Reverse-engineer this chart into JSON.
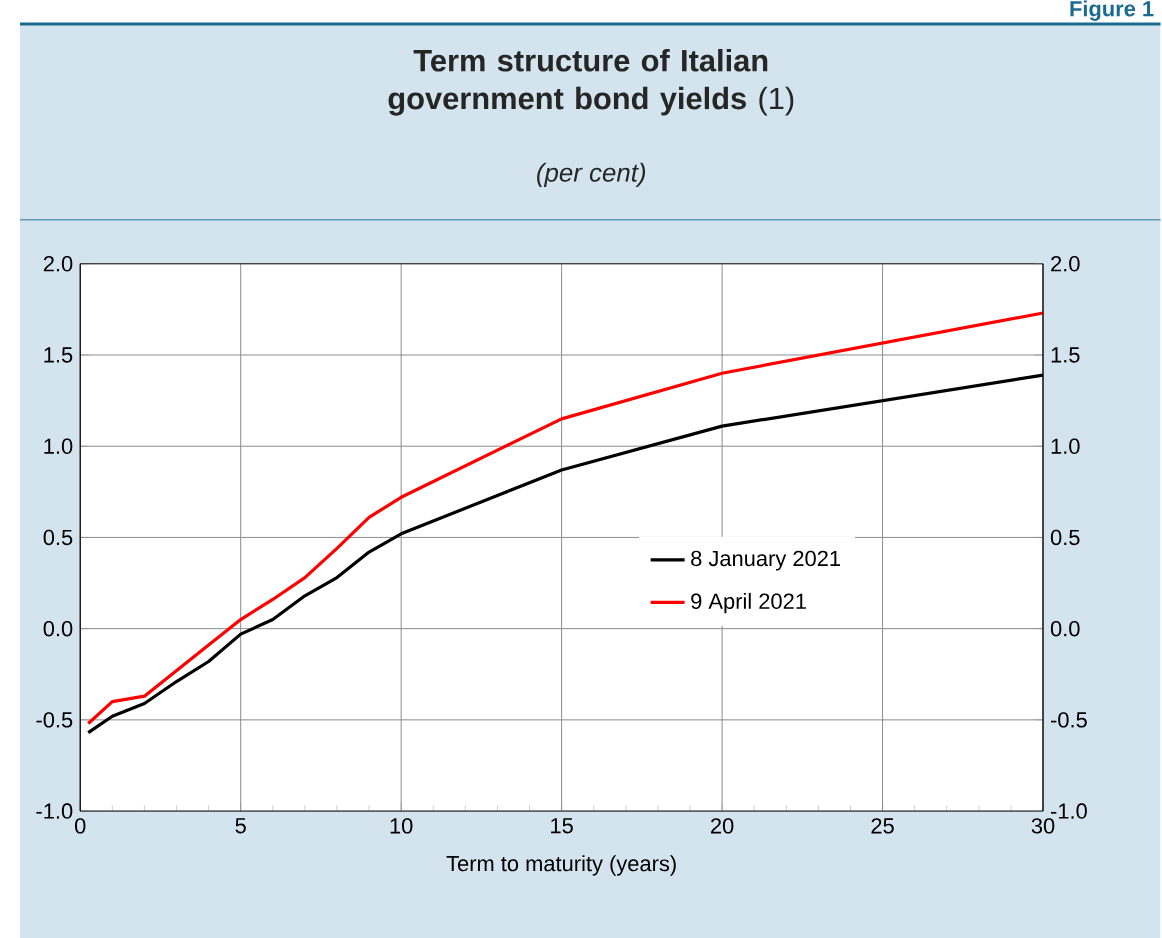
{
  "chart_data": {
    "type": "line",
    "title": "**Term structure of Italian government bond yields** (1)",
    "subtitle": "(per cent)",
    "xlabel": "Term to maturity (years)",
    "annotations": [
      "Figure 1"
    ],
    "x": [
      0.25,
      1,
      2,
      3,
      4,
      5,
      6,
      7,
      8,
      9,
      10,
      15,
      20,
      30
    ],
    "series": [
      {
        "name": "8 January 2021",
        "color": "#000000",
        "values": [
          -0.57,
          -0.48,
          -0.41,
          -0.29,
          -0.18,
          -0.03,
          0.05,
          0.18,
          0.28,
          0.42,
          0.52,
          0.87,
          1.11,
          1.39
        ]
      },
      {
        "name": "9 April 2021",
        "color": "#ff0000",
        "values": [
          -0.52,
          -0.4,
          -0.37,
          -0.23,
          -0.09,
          0.05,
          0.16,
          0.28,
          0.44,
          0.61,
          0.72,
          1.15,
          1.4,
          1.73
        ]
      }
    ],
    "xlim": [
      0,
      30
    ],
    "xticks": [
      0,
      5,
      10,
      15,
      20,
      25,
      30
    ],
    "ylim": [
      -1,
      2
    ],
    "yticks": [
      {
        "value": -1,
        "label": "-1.0"
      },
      {
        "value": -0.5,
        "label": "-0.5"
      },
      {
        "value": 0,
        "label": "0.0"
      },
      {
        "value": 0.5,
        "label": "0.5"
      },
      {
        "value": 1,
        "label": "1.0"
      },
      {
        "value": 1.5,
        "label": "1.5"
      },
      {
        "value": 2,
        "label": "2.0"
      }
    ],
    "y2lim": [
      -1,
      2
    ],
    "y2ticks": [
      {
        "value": -1,
        "label": "-1.0"
      },
      {
        "value": -0.5,
        "label": "-0.5"
      },
      {
        "value": 0,
        "label": "0.0"
      },
      {
        "value": 0.5,
        "label": "0.5"
      },
      {
        "value": 1,
        "label": "1.0"
      },
      {
        "value": 1.5,
        "label": "1.5"
      },
      {
        "value": 2,
        "label": "2.0"
      }
    ],
    "grid": true,
    "legend": "right",
    "line_style": "solid"
  }
}
